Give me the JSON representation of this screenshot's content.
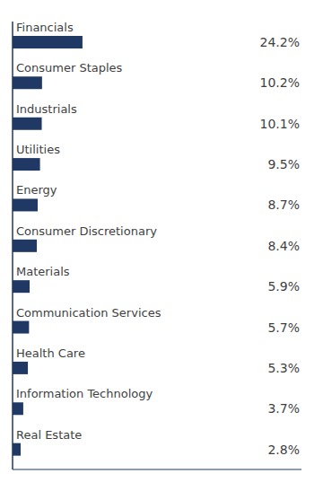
{
  "chart_data": {
    "type": "bar",
    "orientation": "horizontal",
    "categories": [
      "Financials",
      "Consumer Staples",
      "Industrials",
      "Utilities",
      "Energy",
      "Consumer Discretionary",
      "Materials",
      "Communication Services",
      "Health Care",
      "Information Technology",
      "Real Estate"
    ],
    "values": [
      24.2,
      10.2,
      10.1,
      9.5,
      8.7,
      8.4,
      5.9,
      5.7,
      5.3,
      3.7,
      2.8
    ],
    "value_labels": [
      "24.2%",
      "10.2%",
      "10.1%",
      "9.5%",
      "8.7%",
      "8.4%",
      "5.9%",
      "5.7%",
      "5.3%",
      "3.7%",
      "2.8%"
    ],
    "color": "#1f3864",
    "xlim": [
      0,
      100
    ],
    "data_labels": true,
    "tick_labels": false,
    "grid": false
  }
}
